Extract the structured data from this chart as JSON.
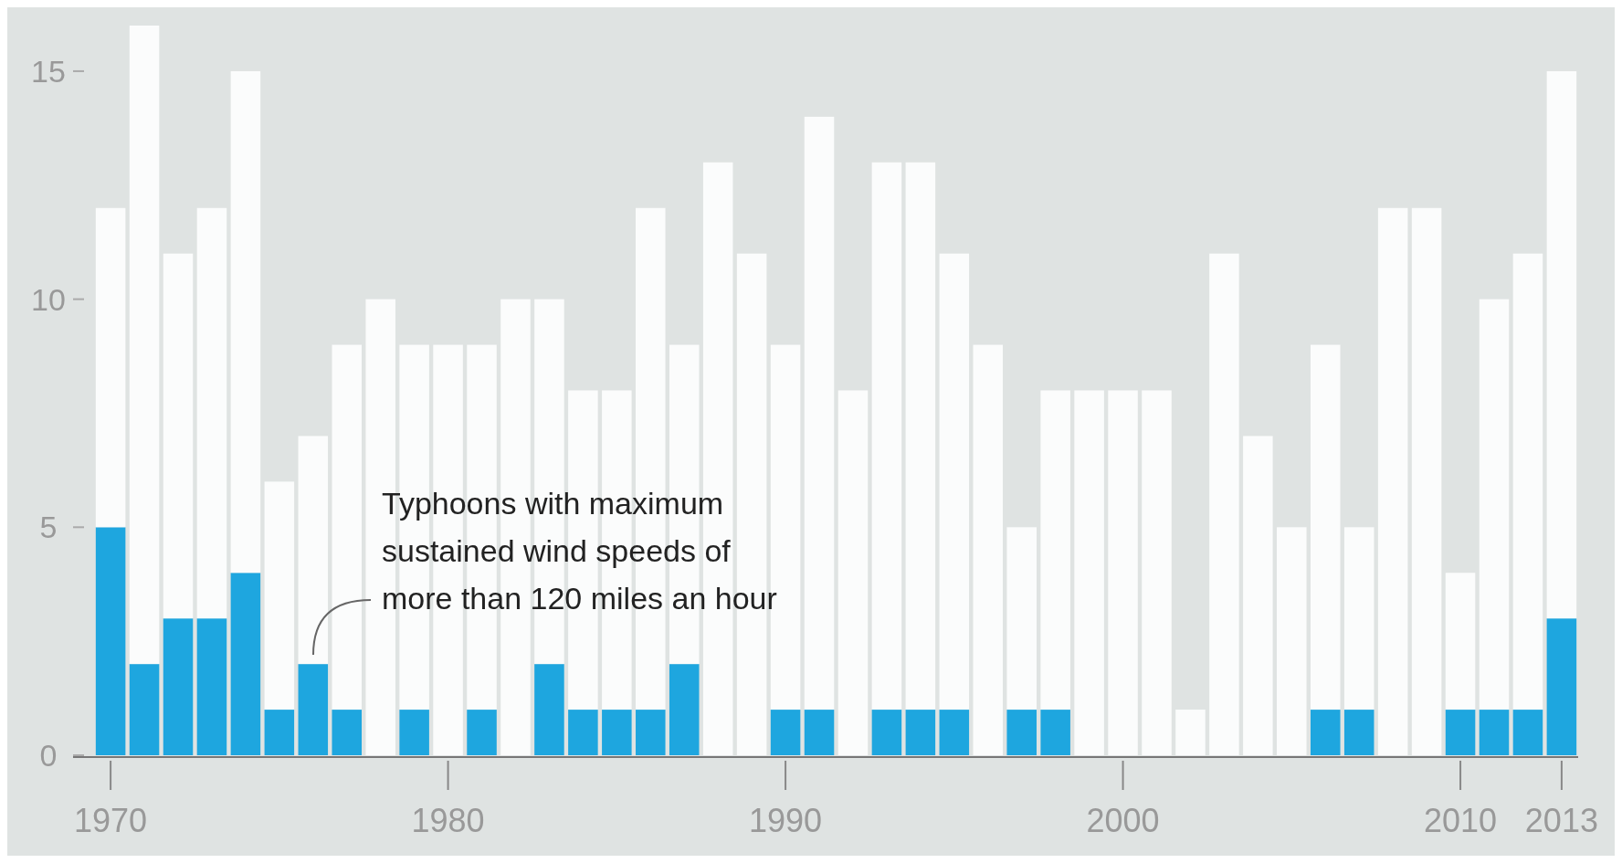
{
  "chart_data": {
    "type": "bar",
    "stacked": true,
    "categories": [
      "1970",
      null,
      null,
      null,
      null,
      null,
      null,
      null,
      null,
      null,
      "1980",
      null,
      null,
      null,
      null,
      null,
      null,
      null,
      null,
      null,
      "1990",
      null,
      null,
      null,
      null,
      null,
      null,
      null,
      null,
      null,
      "2000",
      null,
      null,
      null,
      null,
      null,
      null,
      null,
      null,
      null,
      "2010",
      null,
      null,
      "2013"
    ],
    "series": [
      {
        "color": "#1ea6df",
        "values": [
          5,
          2,
          3,
          3,
          4,
          1,
          2,
          1,
          0,
          1,
          0,
          1,
          0,
          2,
          1,
          1,
          1,
          2,
          0,
          0,
          1,
          1,
          0,
          1,
          1,
          1,
          0,
          1,
          1,
          0,
          0,
          0,
          0,
          0,
          0,
          0,
          1,
          1,
          0,
          0,
          1,
          1,
          1,
          3
        ]
      },
      {
        "color": "#fbfcfc",
        "values": [
          7,
          14,
          8,
          9,
          11,
          5,
          5,
          8,
          10,
          8,
          9,
          8,
          10,
          8,
          7,
          7,
          11,
          7,
          13,
          11,
          8,
          13,
          8,
          12,
          12,
          10,
          9,
          4,
          7,
          8,
          8,
          8,
          1,
          11,
          7,
          5,
          8,
          4,
          12,
          12,
          3,
          9,
          10,
          12
        ]
      }
    ],
    "ylim": [
      0,
      16
    ],
    "yticks": [
      0,
      5,
      10,
      15
    ],
    "grid": false,
    "annotations": [
      "Typhoons with maximum sustained wind speeds of more than 120 miles an hour"
    ]
  }
}
